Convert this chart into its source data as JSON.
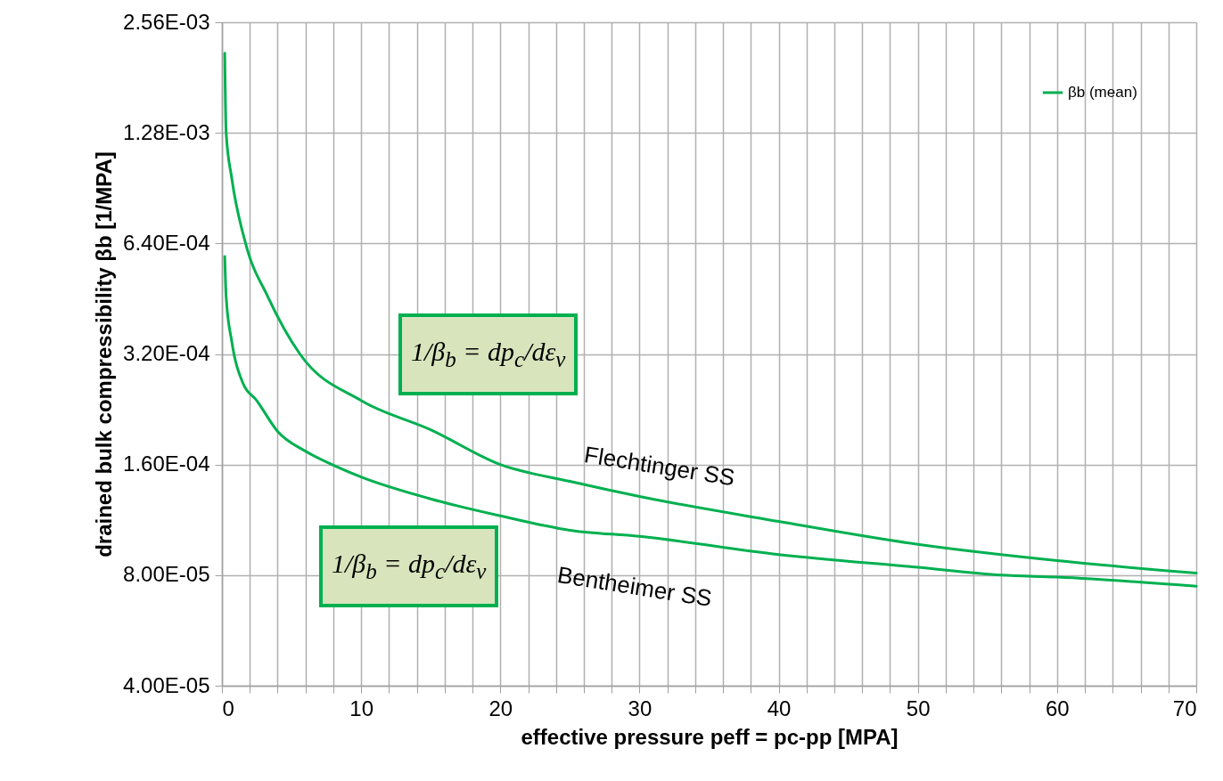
{
  "chart_data": {
    "type": "line",
    "xlabel": "effective pressure peff = pc-pp [MPA]",
    "ylabel": "drained bulk compressibility  βb [1/MPA]",
    "log": "y",
    "grid": true,
    "legend": "top right",
    "line_style": "solid",
    "marker": "none",
    "xlim": [
      0,
      70
    ],
    "ylim": [
      4e-05,
      0.00256
    ],
    "xticks": [
      0,
      {
        "value": 2,
        "label": null
      },
      {
        "value": 4,
        "label": null
      },
      {
        "value": 6,
        "label": null
      },
      {
        "value": 8,
        "label": null
      },
      10,
      {
        "value": 12,
        "label": null
      },
      {
        "value": 14,
        "label": null
      },
      {
        "value": 16,
        "label": null
      },
      {
        "value": 18,
        "label": null
      },
      20,
      {
        "value": 22,
        "label": null
      },
      {
        "value": 24,
        "label": null
      },
      {
        "value": 26,
        "label": null
      },
      {
        "value": 28,
        "label": null
      },
      30,
      {
        "value": 32,
        "label": null
      },
      {
        "value": 34,
        "label": null
      },
      {
        "value": 36,
        "label": null
      },
      {
        "value": 38,
        "label": null
      },
      40,
      {
        "value": 42,
        "label": null
      },
      {
        "value": 44,
        "label": null
      },
      {
        "value": 46,
        "label": null
      },
      {
        "value": 48,
        "label": null
      },
      50,
      {
        "value": 52,
        "label": null
      },
      {
        "value": 54,
        "label": null
      },
      {
        "value": 56,
        "label": null
      },
      {
        "value": 58,
        "label": null
      },
      60,
      {
        "value": 62,
        "label": null
      },
      {
        "value": 64,
        "label": null
      },
      {
        "value": 66,
        "label": null
      },
      {
        "value": 68,
        "label": null
      },
      70
    ],
    "yticks": [
      {
        "value": 4e-05,
        "label": "4.00E-05"
      },
      {
        "value": 8e-05,
        "label": "8.00E-05"
      },
      {
        "value": 0.00016,
        "label": "1.60E-04"
      },
      {
        "value": 0.00032,
        "label": "3.20E-04"
      },
      {
        "value": 0.00064,
        "label": "6.40E-04"
      },
      {
        "value": 0.00128,
        "label": "1.28E-03"
      },
      {
        "value": 0.00256,
        "label": "2.56E-03"
      }
    ],
    "series": [
      {
        "name": "βb (mean)",
        "color": "#00b050",
        "x": [
          0.2,
          0.3,
          0.7,
          1.7,
          3.3,
          5.6,
          10,
          15,
          20,
          25,
          30,
          40,
          50,
          60,
          70
        ],
        "values": [
          0.00211,
          0.00128,
          0.000965,
          0.00064,
          0.000458,
          0.00032,
          0.000239,
          0.000199,
          0.00016,
          0.000144,
          0.000131,
          0.000112,
          9.7e-05,
          8.76e-05,
          8.1e-05
        ]
      },
      {
        "color": "#00b050",
        "x": [
          0.2,
          0.3,
          0.7,
          1.5,
          2.5,
          4,
          6,
          7.9,
          10,
          15,
          20,
          25,
          30,
          40,
          50,
          56,
          60,
          70
        ],
        "values": [
          0.00059,
          0.000458,
          0.000347,
          0.000267,
          0.000239,
          0.000197,
          0.000174,
          0.00016,
          0.000148,
          0.000129,
          0.000116,
          0.000106,
          0.000102,
          9.1e-05,
          8.4e-05,
          8e-05,
          7.9e-05,
          7.46e-05
        ]
      }
    ],
    "annotations": [
      "Flechtinger SS",
      "Bentheimer SS",
      "1/β$_{b}$ = dp$_{c}$/dε$_{v}$",
      "1/β$_{b}$ = dp$_{c}$/dε$_{v}$"
    ]
  }
}
